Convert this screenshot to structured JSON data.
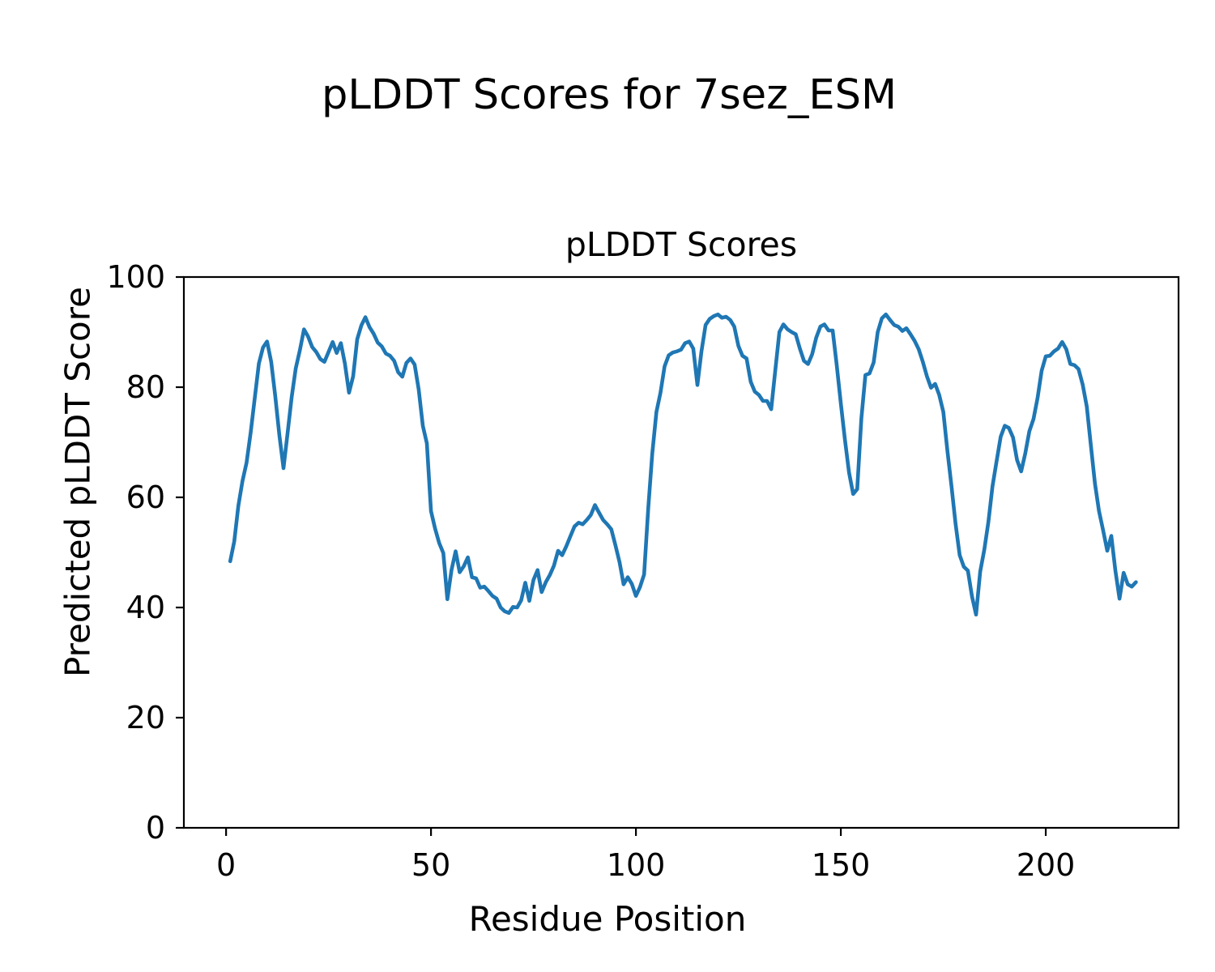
{
  "figure": {
    "suptitle": "pLDDT Scores for 7sez_ESM",
    "axes_title": "pLDDT Scores",
    "xlabel": "Residue Position",
    "ylabel": "Predicted pLDDT Score",
    "background_color": "#ffffff",
    "spine_color": "#000000",
    "text_color": "#000000"
  },
  "chart_data": {
    "type": "line",
    "title": "pLDDT Scores",
    "xlabel": "Residue Position",
    "ylabel": "Predicted pLDDT Score",
    "grid": false,
    "legend_position": "none",
    "line_color": "#1f77b4",
    "xlim": [
      -10.3,
      232.4
    ],
    "ylim": [
      0,
      100
    ],
    "x_ticks": [
      0,
      50,
      100,
      150,
      200
    ],
    "y_ticks": [
      0,
      20,
      40,
      60,
      80,
      100
    ],
    "x_start": 1,
    "series": [
      {
        "name": "pLDDT",
        "color": "#1f77b4",
        "values": [
          48.4,
          52.0,
          58.5,
          63.0,
          66.3,
          71.8,
          78.0,
          84.3,
          87.2,
          88.3,
          84.6,
          78.4,
          71.3,
          65.3,
          71.6,
          78.2,
          83.4,
          86.7,
          90.5,
          89.2,
          87.3,
          86.4,
          85.1,
          84.6,
          86.4,
          88.2,
          86.2,
          88.0,
          84.3,
          79.0,
          82.0,
          88.7,
          91.2,
          92.7,
          90.9,
          89.7,
          88.1,
          87.4,
          86.1,
          85.7,
          84.8,
          82.7,
          81.9,
          84.4,
          85.2,
          84.1,
          79.6,
          73.0,
          69.8,
          57.5,
          54.3,
          51.7,
          49.9,
          41.5,
          46.8,
          50.2,
          46.4,
          47.5,
          49.1,
          45.5,
          45.3,
          43.6,
          43.8,
          43.0,
          42.1,
          41.6,
          40.0,
          39.3,
          39.0,
          40.1,
          40.0,
          41.3,
          44.5,
          41.2,
          45.0,
          46.8,
          42.8,
          44.6,
          45.9,
          47.6,
          50.3,
          49.5,
          51.1,
          52.9,
          54.7,
          55.4,
          55.1,
          55.9,
          56.8,
          58.6,
          57.2,
          55.9,
          55.1,
          54.2,
          51.3,
          48.2,
          44.2,
          45.5,
          44.3,
          42.1,
          43.7,
          46.0,
          58.0,
          68.0,
          75.5,
          79.0,
          83.8,
          85.8,
          86.3,
          86.5,
          86.8,
          88.0,
          88.3,
          87.0,
          80.4,
          86.5,
          91.3,
          92.4,
          92.9,
          93.2,
          92.6,
          92.8,
          92.2,
          91.0,
          87.5,
          85.7,
          85.2,
          81.0,
          79.2,
          78.6,
          77.5,
          77.5,
          76.0,
          83.0,
          90.0,
          91.4,
          90.5,
          90.0,
          89.6,
          87.0,
          84.8,
          84.2,
          86.0,
          89.0,
          91.0,
          91.4,
          90.3,
          90.3,
          84.0,
          77.0,
          70.5,
          64.5,
          60.6,
          61.5,
          74.3,
          82.2,
          82.5,
          84.5,
          90.0,
          92.5,
          93.2,
          92.2,
          91.3,
          91.0,
          90.2,
          90.7,
          89.6,
          88.4,
          86.9,
          84.6,
          82.0,
          79.9,
          80.6,
          78.6,
          75.5,
          68.5,
          62.0,
          55.2,
          49.5,
          47.4,
          46.7,
          42.0,
          38.7,
          46.5,
          50.5,
          55.5,
          62.0,
          66.5,
          71.0,
          73.0,
          72.6,
          70.9,
          66.8,
          64.7,
          68.0,
          72.0,
          74.2,
          78.0,
          83.0,
          85.6,
          85.7,
          86.5,
          87.0,
          88.2,
          86.9,
          84.2,
          84.0,
          83.3,
          80.5,
          76.5,
          69.5,
          62.5,
          57.5,
          54.0,
          50.3,
          53.0,
          46.6,
          41.6,
          46.3,
          44.2,
          43.8,
          44.6
        ]
      }
    ]
  }
}
